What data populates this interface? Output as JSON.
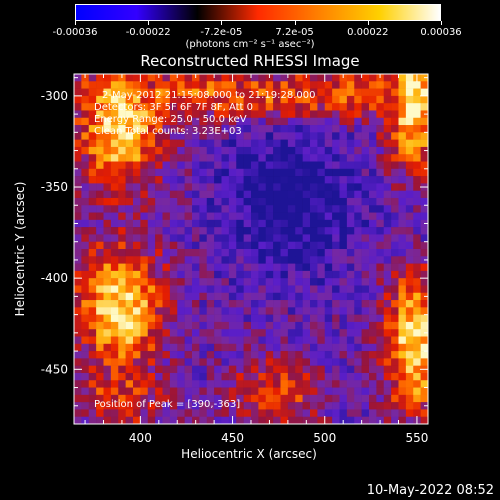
{
  "colorbar": {
    "ticks": [
      "-0.00036",
      "-0.00022",
      "-7.2e-05",
      "7.2e-05",
      "0.00022",
      "0.00036"
    ],
    "unit": "(photons cm⁻² s⁻¹ asec⁻²)",
    "stops": [
      "#0000ff",
      "#3300ff",
      "#000000",
      "#ff2a00",
      "#ff8000",
      "#ffd000",
      "#ffffff"
    ]
  },
  "chart_data": {
    "type": "heatmap",
    "title": "Reconstructed RHESSI Image",
    "xlabel": "Heliocentric X (arcsec)",
    "ylabel": "Heliocentric Y (arcsec)",
    "xlim": [
      364,
      556
    ],
    "ylim": [
      -480,
      -288
    ],
    "xticks": [
      "400",
      "450",
      "500",
      "550"
    ],
    "yticks": [
      "-300",
      "-350",
      "-400",
      "-450"
    ],
    "annotations": [
      "2-May-2012 21:15:08.000 to 21:19:28.000",
      "Detectors: 3F 5F 6F 7F 8F, Att 0",
      "Energy Range: 25.0 - 50.0 keV",
      "Clean     Total counts: 3.23E+03"
    ],
    "peak_label": "Position of Peak = [390,-363]",
    "peak": [
      390,
      -363
    ]
  },
  "timestamp": "10-May-2022 08:52"
}
